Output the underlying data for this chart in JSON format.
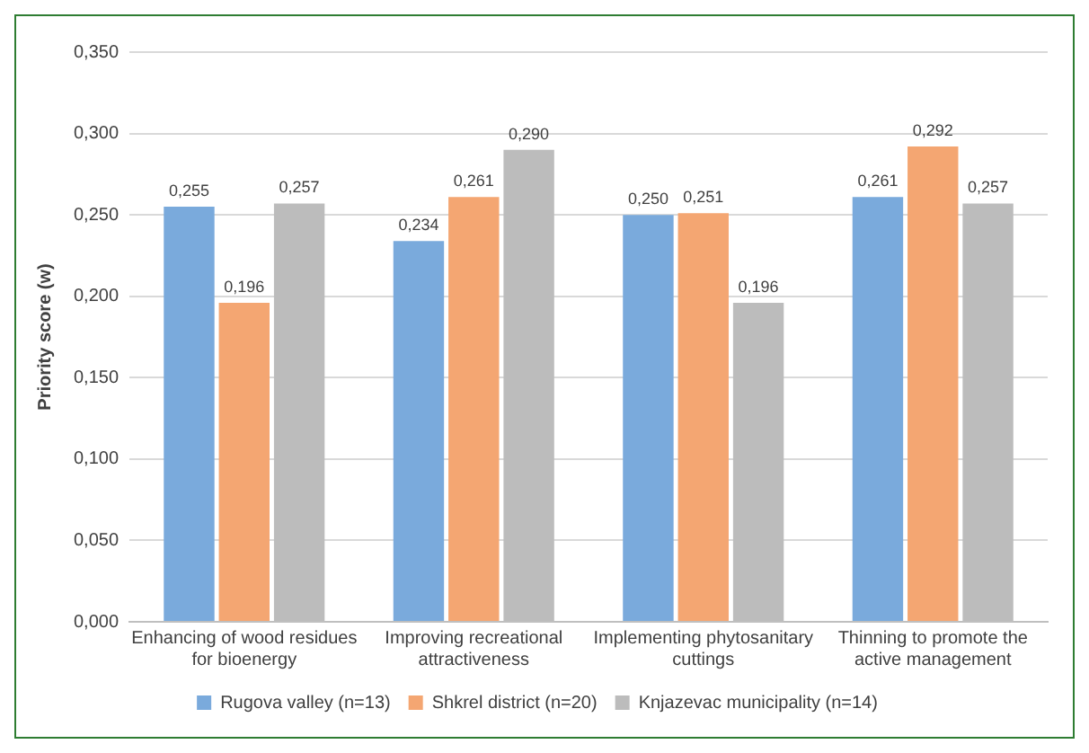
{
  "chart_data": {
    "type": "bar",
    "ylabel": "Priority score (w)",
    "categories": [
      "Enhancing of wood residues for bioenergy",
      "Improving recreational attractiveness",
      "Implementing phytosanitary cuttings",
      "Thinning to promote the active management"
    ],
    "series": [
      {
        "name": "Rugova valley (n=13)",
        "color": "#7aaadc",
        "values": [
          0.255,
          0.234,
          0.25,
          0.261
        ],
        "value_labels": [
          "0,255",
          "0,234",
          "0,250",
          "0,261"
        ]
      },
      {
        "name": "Shkrel district (n=20)",
        "color": "#f4a672",
        "values": [
          0.196,
          0.261,
          0.251,
          0.292
        ],
        "value_labels": [
          "0,196",
          "0,261",
          "0,251",
          "0,292"
        ]
      },
      {
        "name": "Knjazevac municipality (n=14)",
        "color": "#bcbcbc",
        "values": [
          0.257,
          0.29,
          0.196,
          0.257
        ],
        "value_labels": [
          "0,257",
          "0,290",
          "0,196",
          "0,257"
        ]
      }
    ],
    "ylim": [
      0,
      0.35
    ],
    "yticks": [
      {
        "value": 0,
        "label": "0,000"
      },
      {
        "value": 0.05,
        "label": "0,050"
      },
      {
        "value": 0.1,
        "label": "0,100"
      },
      {
        "value": 0.15,
        "label": "0,150"
      },
      {
        "value": 0.2,
        "label": "0,200"
      },
      {
        "value": 0.25,
        "label": "0,250"
      },
      {
        "value": 0.3,
        "label": "0,300"
      },
      {
        "value": 0.35,
        "label": "0,350"
      }
    ],
    "grid": "y",
    "legend": "bottom"
  }
}
